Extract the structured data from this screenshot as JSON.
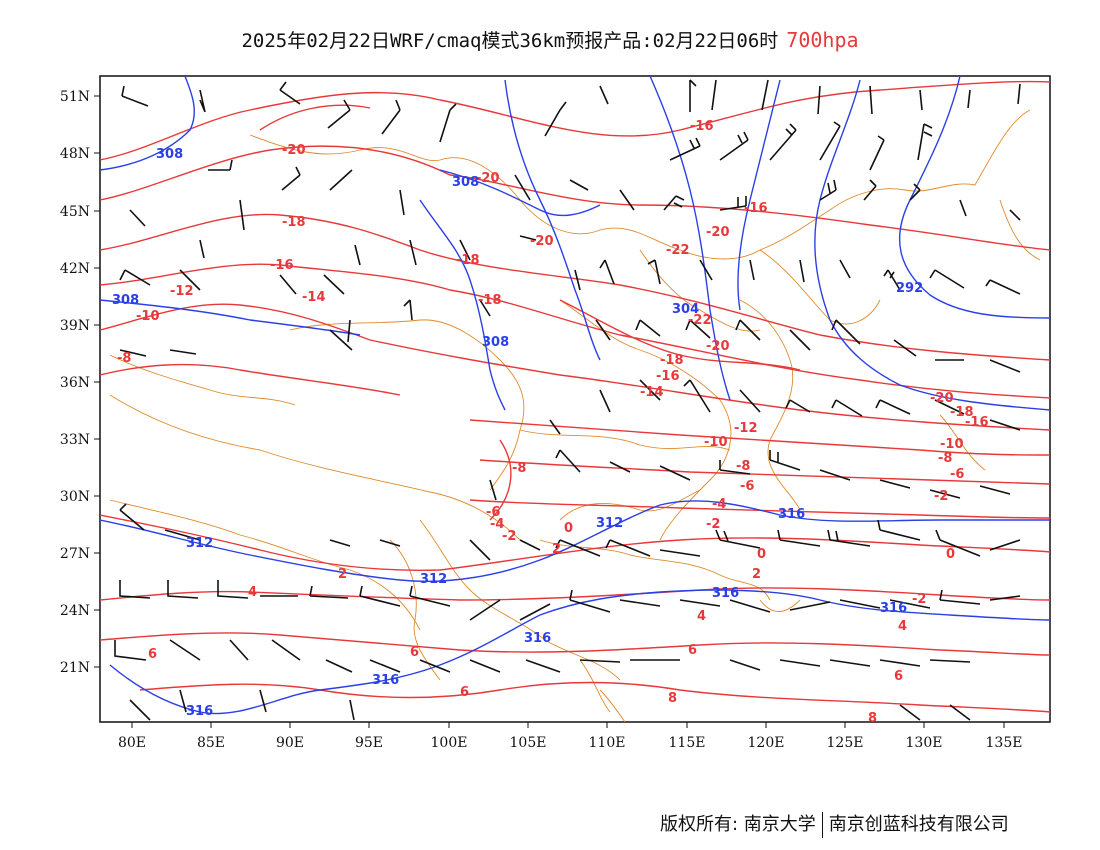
{
  "title": {
    "main": "2025年02月22日WRF/cmaq模式36km预报产品:02月22日06时",
    "level": "700hpa"
  },
  "axes": {
    "lat_labels": [
      "51N",
      "48N",
      "45N",
      "42N",
      "39N",
      "36N",
      "33N",
      "30N",
      "27N",
      "24N",
      "21N"
    ],
    "lon_labels": [
      "80E",
      "85E",
      "90E",
      "95E",
      "100E",
      "105E",
      "110E",
      "115E",
      "120E",
      "125E",
      "130E",
      "135E"
    ]
  },
  "map_data": {
    "type": "weather-map",
    "region": {
      "lon_range": [
        78,
        138
      ],
      "lat_range": [
        18,
        52
      ]
    },
    "temperature_labels": [
      "-20",
      "-18",
      "-20",
      "-16",
      "-20",
      "-18",
      "-16",
      "-12",
      "-14",
      "-10",
      "-8",
      "-18",
      "-16",
      "-20",
      "-22",
      "-18",
      "-16",
      "-14",
      "-20",
      "-22",
      "-20",
      "-18",
      "-16",
      "-12",
      "-10",
      "-8",
      "-8",
      "-6",
      "-6",
      "-4",
      "-2",
      "-2",
      "0",
      "-6",
      "-4",
      "-2",
      "0",
      "2",
      "0",
      "2",
      "4",
      "4",
      "-2",
      "4",
      "6",
      "6",
      "6",
      "6",
      "8",
      "8",
      "2",
      "-8",
      "-10"
    ],
    "height_labels": [
      "308",
      "308",
      "308",
      "308",
      "304",
      "292",
      "312",
      "312",
      "312",
      "316",
      "316",
      "316",
      "316",
      "316"
    ]
  },
  "footer": {
    "copyright": "版权所有: 南京大学",
    "company": "南京创蓝科技有限公司"
  }
}
